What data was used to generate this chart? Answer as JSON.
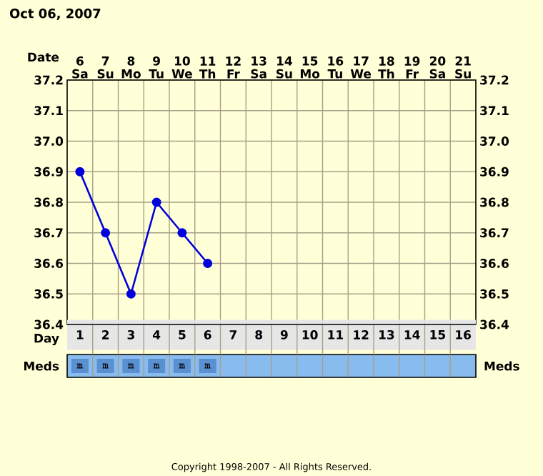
{
  "chart_data": {
    "type": "line",
    "title": "Oct 06, 2007",
    "xlabel": "Date",
    "x2label": "Day",
    "categories": [
      "6 Sa",
      "7 Su",
      "8 Mo",
      "9 Tu",
      "10 We",
      "11 Th",
      "12 Fr",
      "13 Sa",
      "14 Su",
      "15 Mo",
      "16 Tu",
      "17 We",
      "18 Th",
      "19 Fr",
      "20 Sa",
      "21 Su"
    ],
    "series": [
      {
        "color": "#0000dd",
        "values": [
          36.9,
          36.7,
          36.5,
          36.8,
          36.7,
          36.6,
          null,
          null,
          null,
          null,
          null,
          null,
          null,
          null,
          null,
          null
        ]
      }
    ],
    "marker": "circle",
    "line_style": "solid",
    "grid": true,
    "ylim": [
      36.4,
      37.2
    ],
    "yticks": [
      36.4,
      36.5,
      36.6,
      36.7,
      36.8,
      36.9,
      {
        "value": 37,
        "label": "37.0"
      },
      37.1,
      37.2
    ],
    "y2lim": [
      36.4,
      37.2
    ],
    "y2ticks": [
      36.4,
      36.5,
      36.6,
      36.7,
      36.8,
      36.9,
      {
        "value": 37,
        "label": "37.0"
      },
      37.1,
      37.2
    ],
    "x2lim": [
      0.5,
      16.5
    ],
    "x2ticks": [
      1,
      2,
      3,
      4,
      5,
      6,
      7,
      8,
      9,
      10,
      11,
      12,
      13,
      14,
      15,
      16
    ],
    "annotations": [
      "Meds",
      "Meds",
      "Copyright 1998-2007 - All Rights Reserved.",
      "m",
      "m",
      "m",
      "m",
      "m",
      "m"
    ]
  }
}
